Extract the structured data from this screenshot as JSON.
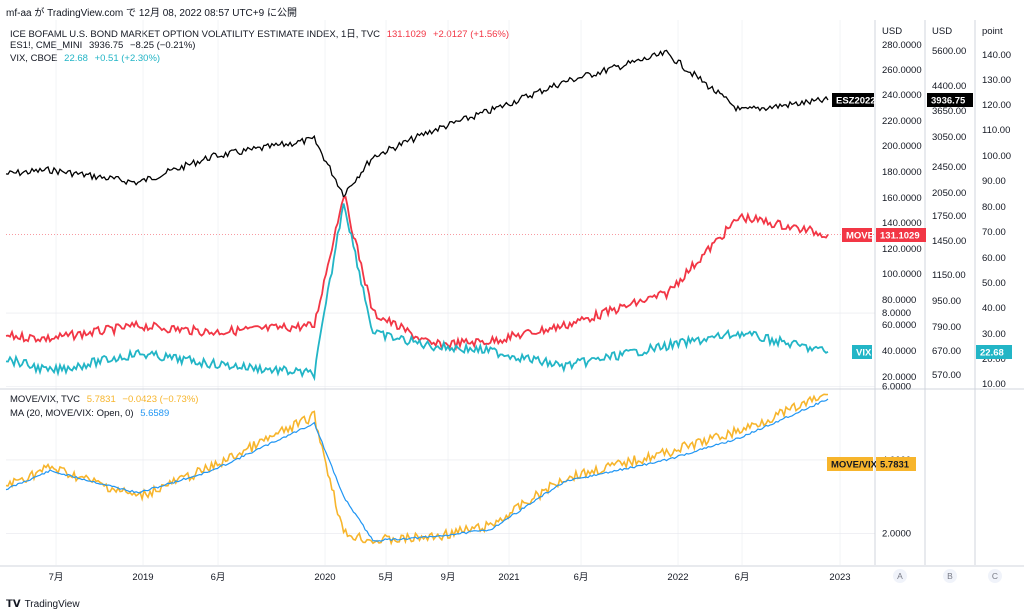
{
  "header": {
    "text": "mf-aa が TradingView.com で 12月 08, 2022 08:57 UTC+9 に公開"
  },
  "legend": {
    "move": {
      "name": "ICE BOFAML U.S. BOND MARKET OPTION VOLATILITY ESTIMATE INDEX, 1日, TVC",
      "value": "131.1029",
      "change": "+2.0127 (+1.56%)"
    },
    "es": {
      "name": "ES1!, CME_MINI",
      "value": "3936.75",
      "change": "−8.25 (−0.21%)"
    },
    "vix": {
      "name": "VIX, CBOE",
      "value": "22.68",
      "change": "+0.51 (+2.30%)"
    },
    "ratio": {
      "name": "MOVE/VIX, TVC",
      "value": "5.7831",
      "change": "−0.0423 (−0.73%)"
    },
    "ma": {
      "name": "MA (20, MOVE/VIX: Open, 0)",
      "value": "5.6589"
    }
  },
  "colors": {
    "move": "#f23645",
    "es": "#000000",
    "vix": "#22b5c6",
    "ratio": "#f7b52c",
    "ma": "#2196f3",
    "axis": "#131722",
    "grid": "#e6e8ee"
  },
  "axes": {
    "usd1_title": "USD",
    "usd2_title": "USD",
    "point_title": "point",
    "usd1_ticks": [
      "280.0000",
      "260.0000",
      "240.0000",
      "220.0000",
      "200.0000",
      "180.0000",
      "160.0000",
      "140.0000",
      "120.0000",
      "100.0000",
      "80.0000",
      "60.0000",
      "40.0000",
      "20.0000"
    ],
    "usd2_ticks": [
      "5600.00",
      "4400.00",
      "3650.00",
      "3050.00",
      "2450.00",
      "2050.00",
      "1750.00",
      "1450.00",
      "1150.00",
      "950.00",
      "790.00",
      "670.00",
      "570.00"
    ],
    "point_ticks": [
      "140.00",
      "130.00",
      "120.00",
      "110.00",
      "100.00",
      "90.00",
      "80.00",
      "70.00",
      "60.00",
      "50.00",
      "40.00",
      "30.00",
      "20.00",
      "10.00"
    ],
    "ratio_ticks": [
      "8.0000",
      "6.0000",
      "4.0000",
      "2.0000"
    ],
    "time_ticks": [
      "7月",
      "2019",
      "6月",
      "2020",
      "5月",
      "9月",
      "2021",
      "6月",
      "2022",
      "6月",
      "2023"
    ],
    "scale_buttons": [
      "A",
      "B",
      "C"
    ]
  },
  "price_tags": {
    "es": "ESZ2022",
    "es_value": "3936.75",
    "move": "MOVE",
    "move_value": "131.1029",
    "vix": "VIX",
    "vix_value": "22.68",
    "ratio": "MOVE/VIX",
    "ratio_value": "5.7831"
  },
  "footer": {
    "brand": "TradingView"
  },
  "chart_data": [
    {
      "type": "line",
      "title": "",
      "x": [
        "2018-04",
        "2018-07",
        "2019-01",
        "2019-06",
        "2020-01",
        "2020-03",
        "2020-05",
        "2020-09",
        "2021-01",
        "2021-06",
        "2022-01",
        "2022-06",
        "2022-12"
      ],
      "series": [
        {
          "name": "ES1!, CME_MINI",
          "axis": "USD (right 2)",
          "values": [
            2650,
            2720,
            2500,
            2950,
            3250,
            2300,
            2950,
            3400,
            3750,
            4250,
            4750,
            3750,
            3936.75
          ]
        },
        {
          "name": "ICE BOFAML U.S. BOND MARKET OPTION VOLATILITY ESTIMATE INDEX",
          "axis": "USD (right 1)",
          "values": [
            52,
            50,
            60,
            55,
            60,
            163,
            70,
            45,
            48,
            60,
            85,
            145,
            131.1029
          ]
        },
        {
          "name": "VIX, CBOE",
          "axis": "point",
          "values": [
            20,
            15,
            22,
            18,
            14,
            82,
            30,
            25,
            23,
            17,
            25,
            30,
            22.68
          ]
        }
      ]
    },
    {
      "type": "line",
      "title": "",
      "ylim": [
        1,
        9
      ],
      "x": [
        "2018-04",
        "2018-07",
        "2019-01",
        "2019-06",
        "2020-01",
        "2020-03",
        "2020-05",
        "2020-09",
        "2021-01",
        "2021-06",
        "2022-01",
        "2022-06",
        "2022-12"
      ],
      "series": [
        {
          "name": "MOVE/VIX, TVC",
          "values": [
            3.3,
            3.8,
            3.0,
            3.8,
            5.2,
            2.0,
            1.8,
            1.9,
            2.2,
            3.5,
            4.2,
            4.8,
            5.7831
          ]
        },
        {
          "name": "MA (20, MOVE/VIX: Open, 0)",
          "values": [
            3.2,
            3.7,
            3.1,
            3.7,
            5.0,
            3.0,
            1.8,
            1.9,
            2.1,
            3.4,
            4.0,
            4.6,
            5.6589
          ]
        }
      ]
    }
  ]
}
